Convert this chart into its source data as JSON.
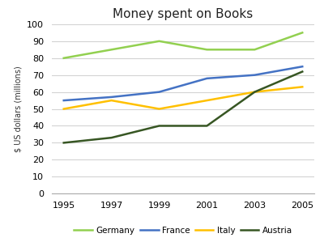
{
  "title": "Money spent on Books",
  "ylabel": "$ US dollars (millions)",
  "years": [
    1995,
    1997,
    1999,
    2001,
    2003,
    2005
  ],
  "series": {
    "Germany": [
      80,
      85,
      90,
      85,
      85,
      95
    ],
    "France": [
      55,
      57,
      60,
      68,
      70,
      75
    ],
    "Italy": [
      50,
      55,
      50,
      55,
      60,
      63
    ],
    "Austria": [
      30,
      33,
      40,
      40,
      60,
      72
    ]
  },
  "colors": {
    "Germany": "#92D050",
    "France": "#4472C4",
    "Italy": "#FFC000",
    "Austria": "#375623"
  },
  "ylim": [
    0,
    100
  ],
  "yticks": [
    0,
    10,
    20,
    30,
    40,
    50,
    60,
    70,
    80,
    90,
    100
  ],
  "background_color": "#ffffff",
  "grid_color": "#d3d3d3"
}
